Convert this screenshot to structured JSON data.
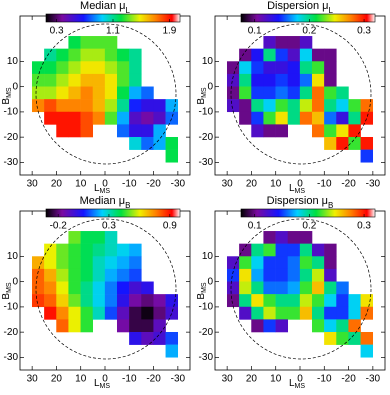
{
  "chart_data": [
    {
      "type": "heatmap",
      "title": "Median μ",
      "title_sub": "L",
      "xlabel": "L",
      "xlabel_sub": "MS",
      "ylabel": "B",
      "ylabel_sub": "MS",
      "xlim": [
        35,
        -35
      ],
      "ylim": [
        -35,
        28
      ],
      "xticks": [
        30,
        20,
        10,
        0,
        -10,
        -20,
        -30
      ],
      "yticks": [
        10,
        0,
        -10,
        -20,
        -30
      ],
      "clim": [
        0.15,
        2.05
      ],
      "cticks": [
        0.3,
        1.1,
        1.9
      ],
      "x": [
        32.5,
        27.5,
        22.5,
        17.5,
        12.5,
        7.5,
        2.5,
        -2.5,
        -7.5,
        -12.5,
        -17.5,
        -22.5,
        -27.5,
        -32.5
      ],
      "y": [
        22.5,
        17.5,
        12.5,
        7.5,
        2.5,
        -2.5,
        -7.5,
        -12.5,
        -17.5,
        -22.5,
        -27.5,
        -32.5
      ],
      "values": [
        [
          null,
          null,
          null,
          null,
          null,
          null,
          null,
          null,
          null,
          null,
          null,
          null,
          null,
          null
        ],
        [
          null,
          null,
          null,
          null,
          1.2,
          1.3,
          1.3,
          1.3,
          null,
          null,
          null,
          null,
          null,
          null
        ],
        [
          null,
          null,
          1.1,
          1.2,
          1.3,
          1.4,
          1.4,
          1.3,
          1.2,
          1.1,
          null,
          null,
          null,
          null
        ],
        [
          null,
          1.2,
          1.2,
          1.3,
          1.4,
          1.5,
          1.5,
          1.4,
          1.3,
          1.1,
          null,
          null,
          null,
          null
        ],
        [
          null,
          1.3,
          1.3,
          1.4,
          1.5,
          1.6,
          1.6,
          1.5,
          1.3,
          1.1,
          null,
          null,
          null,
          null
        ],
        [
          null,
          1.4,
          1.4,
          1.5,
          1.6,
          1.7,
          1.6,
          1.5,
          1.2,
          0.9,
          0.8,
          null,
          null,
          null
        ],
        [
          null,
          1.7,
          1.8,
          1.7,
          1.7,
          1.7,
          1.6,
          1.4,
          1.1,
          0.7,
          0.6,
          0.6,
          0.9,
          null
        ],
        [
          null,
          null,
          1.9,
          1.9,
          1.9,
          1.8,
          1.7,
          1.3,
          0.9,
          0.5,
          0.4,
          0.5,
          0.8,
          null
        ],
        [
          null,
          null,
          null,
          1.9,
          1.9,
          1.8,
          null,
          null,
          0.8,
          0.6,
          0.6,
          0.9,
          null,
          null
        ],
        [
          null,
          null,
          null,
          null,
          null,
          null,
          null,
          null,
          null,
          1.0,
          0.8,
          0.9,
          1.2,
          null
        ],
        [
          null,
          null,
          null,
          null,
          null,
          null,
          null,
          null,
          null,
          null,
          null,
          null,
          1.2,
          null
        ],
        [
          null,
          null,
          null,
          null,
          null,
          null,
          null,
          null,
          null,
          null,
          null,
          null,
          null,
          null
        ]
      ]
    },
    {
      "type": "heatmap",
      "title": "Dispersion μ",
      "title_sub": "L",
      "xlabel": "L",
      "xlabel_sub": "MS",
      "ylabel": "B",
      "ylabel_sub": "MS",
      "xlim": [
        35,
        -35
      ],
      "ylim": [
        -35,
        28
      ],
      "xticks": [
        30,
        20,
        10,
        0,
        -10,
        -20,
        -30
      ],
      "yticks": [
        10,
        0,
        -10,
        -20,
        -30
      ],
      "clim": [
        0.075,
        0.32
      ],
      "cticks": [
        0.1,
        0.2,
        0.3
      ],
      "x": [
        32.5,
        27.5,
        22.5,
        17.5,
        12.5,
        7.5,
        2.5,
        -2.5,
        -7.5,
        -12.5,
        -17.5,
        -22.5,
        -27.5,
        -32.5
      ],
      "y": [
        22.5,
        17.5,
        12.5,
        7.5,
        2.5,
        -2.5,
        -7.5,
        -12.5,
        -17.5,
        -22.5,
        -27.5,
        -32.5
      ],
      "values": [
        [
          null,
          null,
          null,
          null,
          null,
          null,
          null,
          null,
          null,
          null,
          null,
          null,
          null,
          null
        ],
        [
          null,
          null,
          null,
          null,
          0.12,
          0.1,
          0.1,
          0.12,
          null,
          null,
          null,
          null,
          null,
          null
        ],
        [
          null,
          null,
          0.1,
          0.14,
          0.2,
          0.15,
          0.12,
          0.18,
          0.1,
          0.1,
          null,
          null,
          null,
          null
        ],
        [
          null,
          0.1,
          0.18,
          0.15,
          0.13,
          0.13,
          0.14,
          0.2,
          0.22,
          0.1,
          null,
          null,
          null,
          null
        ],
        [
          null,
          0.12,
          0.2,
          0.14,
          0.14,
          0.15,
          0.14,
          0.16,
          0.25,
          0.1,
          null,
          null,
          null,
          null
        ],
        [
          null,
          0.1,
          0.22,
          0.15,
          0.15,
          0.16,
          0.15,
          0.2,
          0.28,
          0.22,
          0.2,
          null,
          null,
          null
        ],
        [
          null,
          0.12,
          0.1,
          0.2,
          0.18,
          0.22,
          0.2,
          0.24,
          0.28,
          0.2,
          0.18,
          0.22,
          0.28,
          null
        ],
        [
          null,
          null,
          0.1,
          0.15,
          0.22,
          0.25,
          0.2,
          0.28,
          0.26,
          0.16,
          0.13,
          0.2,
          0.3,
          null
        ],
        [
          null,
          null,
          null,
          0.12,
          0.1,
          0.1,
          null,
          null,
          0.28,
          0.22,
          0.25,
          0.3,
          null,
          null
        ],
        [
          null,
          null,
          null,
          null,
          null,
          null,
          null,
          null,
          null,
          0.26,
          0.3,
          0.22,
          0.3,
          null
        ],
        [
          null,
          null,
          null,
          null,
          null,
          null,
          null,
          null,
          null,
          null,
          null,
          null,
          0.15,
          null
        ],
        [
          null,
          null,
          null,
          null,
          null,
          null,
          null,
          null,
          null,
          null,
          null,
          null,
          null,
          null
        ]
      ]
    },
    {
      "type": "heatmap",
      "title": "Median μ",
      "title_sub": "B",
      "xlabel": "L",
      "xlabel_sub": "MS",
      "ylabel": "B",
      "ylabel_sub": "MS",
      "xlim": [
        35,
        -35
      ],
      "ylim": [
        -35,
        28
      ],
      "xticks": [
        30,
        20,
        10,
        0,
        -10,
        -20,
        -30
      ],
      "yticks": [
        10,
        0,
        -10,
        -20,
        -30
      ],
      "clim": [
        -0.32,
        1.0
      ],
      "cticks": [
        -0.2,
        0.3,
        0.9
      ],
      "x": [
        32.5,
        27.5,
        22.5,
        17.5,
        12.5,
        7.5,
        2.5,
        -2.5,
        -7.5,
        -12.5,
        -17.5,
        -22.5,
        -27.5,
        -32.5
      ],
      "y": [
        22.5,
        17.5,
        12.5,
        7.5,
        2.5,
        -2.5,
        -7.5,
        -12.5,
        -17.5,
        -22.5,
        -27.5,
        -32.5
      ],
      "values": [
        [
          null,
          null,
          null,
          null,
          null,
          null,
          null,
          null,
          null,
          null,
          null,
          null,
          null,
          null
        ],
        [
          null,
          null,
          null,
          null,
          0.5,
          0.4,
          0.4,
          0.3,
          null,
          null,
          null,
          null,
          null,
          null
        ],
        [
          null,
          null,
          0.6,
          0.5,
          0.45,
          0.4,
          0.35,
          0.3,
          0.25,
          0.2,
          null,
          null,
          null,
          null
        ],
        [
          null,
          0.7,
          0.6,
          0.5,
          0.45,
          0.4,
          0.3,
          0.25,
          0.2,
          0.15,
          null,
          null,
          null,
          null
        ],
        [
          null,
          0.8,
          0.7,
          0.55,
          0.45,
          0.4,
          0.3,
          0.2,
          0.15,
          0.1,
          null,
          null,
          null,
          null
        ],
        [
          null,
          0.8,
          0.75,
          0.6,
          0.45,
          0.35,
          0.25,
          0.15,
          0.05,
          -0.05,
          0.0,
          null,
          null,
          null
        ],
        [
          null,
          0.85,
          0.8,
          0.65,
          0.5,
          0.35,
          0.25,
          0.15,
          0.0,
          -0.15,
          -0.2,
          -0.15,
          0.0,
          null
        ],
        [
          null,
          null,
          0.9,
          0.75,
          0.6,
          0.45,
          0.3,
          0.1,
          -0.1,
          -0.25,
          -0.3,
          -0.2,
          -0.05,
          null
        ],
        [
          null,
          null,
          null,
          0.8,
          0.6,
          0.45,
          null,
          null,
          -0.15,
          -0.25,
          -0.25,
          -0.1,
          null,
          null
        ],
        [
          null,
          null,
          null,
          null,
          null,
          null,
          null,
          null,
          null,
          0.0,
          -0.1,
          -0.05,
          0.1,
          null
        ],
        [
          null,
          null,
          null,
          null,
          null,
          null,
          null,
          null,
          null,
          null,
          null,
          null,
          0.2,
          null
        ],
        [
          null,
          null,
          null,
          null,
          null,
          null,
          null,
          null,
          null,
          null,
          null,
          null,
          null,
          null
        ]
      ]
    },
    {
      "type": "heatmap",
      "title": "Dispersion μ",
      "title_sub": "B",
      "xlabel": "L",
      "xlabel_sub": "MS",
      "ylabel": "B",
      "ylabel_sub": "MS",
      "xlim": [
        35,
        -35
      ],
      "ylim": [
        -35,
        28
      ],
      "xticks": [
        30,
        20,
        10,
        0,
        -10,
        -20,
        -30
      ],
      "yticks": [
        10,
        0,
        -10,
        -20,
        -30
      ],
      "clim": [
        0.075,
        0.32
      ],
      "cticks": [
        0.1,
        0.2,
        0.3
      ],
      "x": [
        32.5,
        27.5,
        22.5,
        17.5,
        12.5,
        7.5,
        2.5,
        -2.5,
        -7.5,
        -12.5,
        -17.5,
        -22.5,
        -27.5,
        -32.5
      ],
      "y": [
        22.5,
        17.5,
        12.5,
        7.5,
        2.5,
        -2.5,
        -7.5,
        -12.5,
        -17.5,
        -22.5,
        -27.5,
        -32.5
      ],
      "values": [
        [
          null,
          null,
          null,
          null,
          null,
          null,
          null,
          null,
          null,
          null,
          null,
          null,
          null,
          null
        ],
        [
          null,
          null,
          null,
          null,
          0.1,
          0.12,
          0.1,
          0.1,
          null,
          null,
          null,
          null,
          null,
          null
        ],
        [
          null,
          null,
          0.1,
          0.2,
          0.22,
          0.15,
          0.15,
          0.2,
          0.12,
          0.1,
          null,
          null,
          null,
          null
        ],
        [
          null,
          0.12,
          0.22,
          0.18,
          0.15,
          0.15,
          0.16,
          0.22,
          0.2,
          0.1,
          null,
          null,
          null,
          null
        ],
        [
          null,
          0.15,
          0.25,
          0.17,
          0.15,
          0.15,
          0.16,
          0.2,
          0.24,
          0.12,
          null,
          null,
          null,
          null
        ],
        [
          null,
          0.12,
          0.24,
          0.2,
          0.16,
          0.16,
          0.17,
          0.22,
          0.26,
          0.2,
          0.16,
          null,
          null,
          null
        ],
        [
          null,
          0.1,
          0.2,
          0.25,
          0.22,
          0.2,
          0.2,
          0.24,
          0.22,
          0.18,
          0.15,
          0.18,
          0.25,
          null
        ],
        [
          null,
          null,
          0.12,
          0.2,
          0.24,
          0.22,
          0.22,
          0.26,
          0.2,
          0.15,
          0.15,
          0.18,
          0.28,
          null
        ],
        [
          null,
          null,
          null,
          0.1,
          0.15,
          0.12,
          null,
          null,
          0.22,
          0.18,
          0.2,
          0.28,
          null,
          null
        ],
        [
          null,
          null,
          null,
          null,
          null,
          null,
          null,
          null,
          null,
          0.25,
          0.22,
          0.2,
          0.28,
          null
        ],
        [
          null,
          null,
          null,
          null,
          null,
          null,
          null,
          null,
          null,
          null,
          null,
          null,
          0.18,
          null
        ],
        [
          null,
          null,
          null,
          null,
          null,
          null,
          null,
          null,
          null,
          null,
          null,
          null,
          null,
          null
        ]
      ]
    }
  ]
}
